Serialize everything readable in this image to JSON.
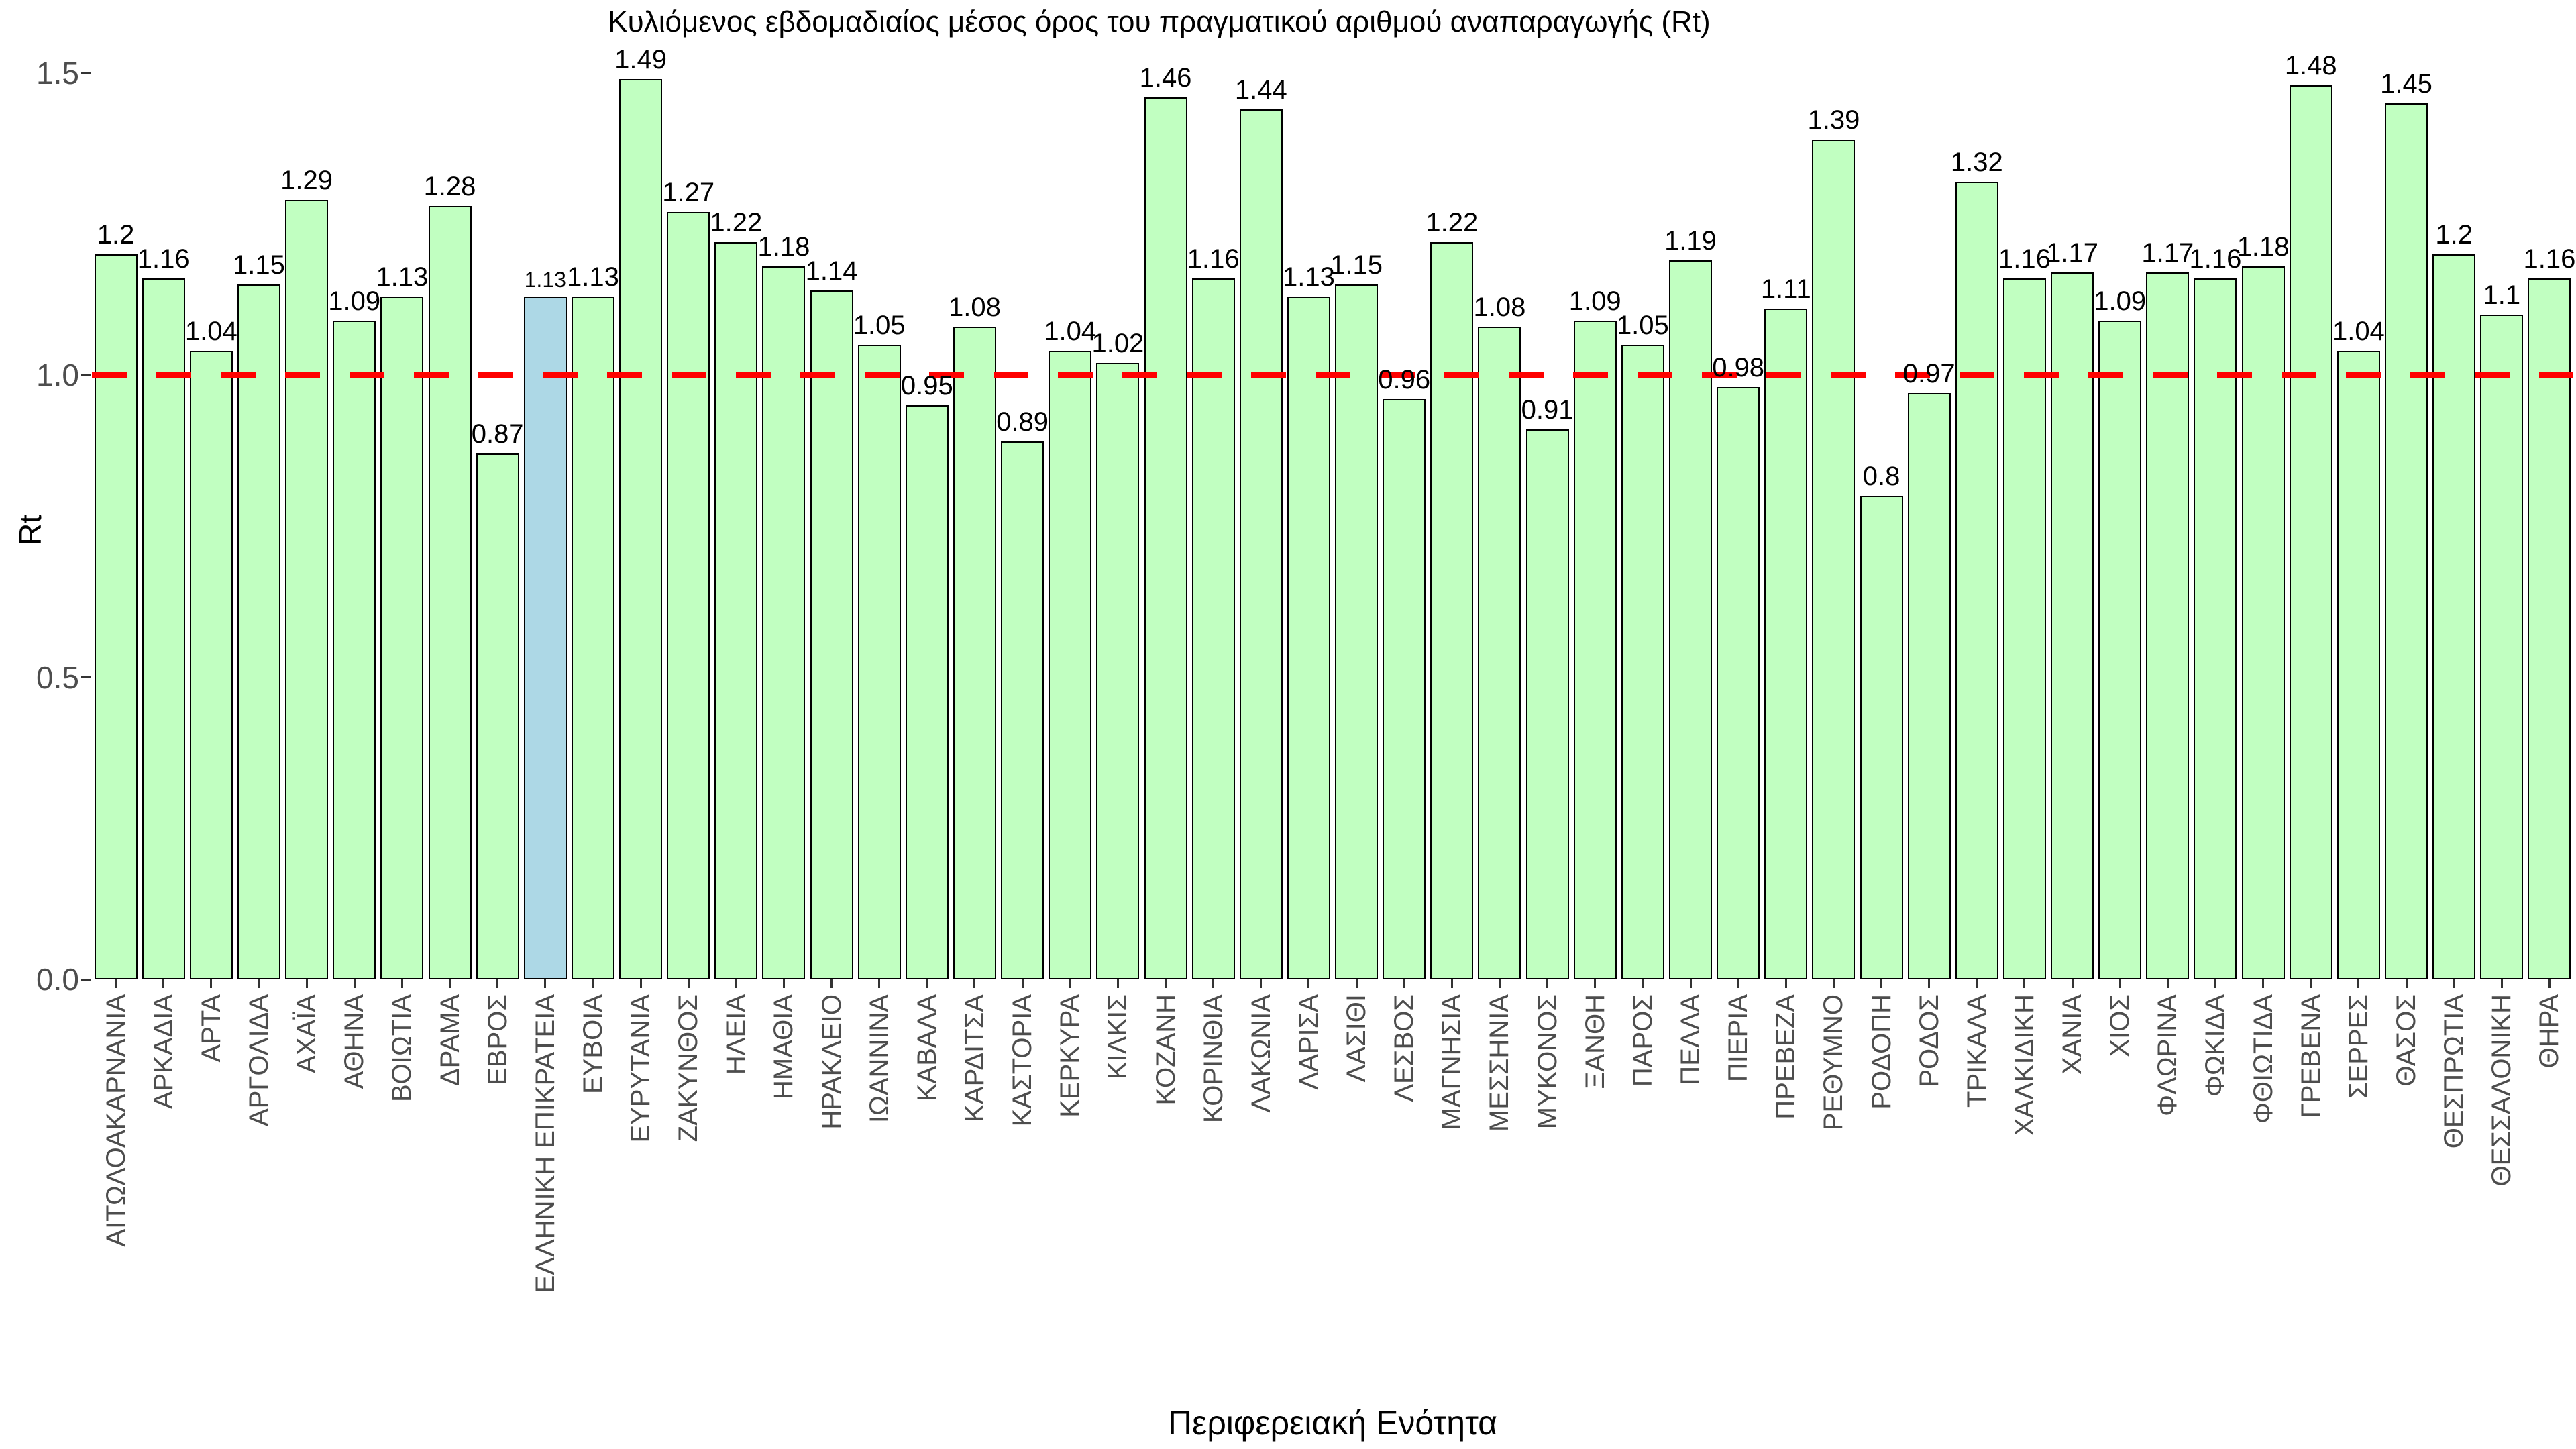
{
  "chart_data": {
    "type": "bar",
    "title": "Κυλιόμενος εβδομαδιαίος μέσος όρος του πραγματικού αριθμού αναπαραγωγής (Rt)",
    "xlabel": "Περιφερειακή Ενότητα",
    "ylabel": "Rt",
    "ylim": [
      0,
      1.5
    ],
    "ytick_labels": [
      "0.0",
      "0.5",
      "1.0",
      "1.5"
    ],
    "ytick_values": [
      0,
      0.5,
      1.0,
      1.5
    ],
    "grid": "off",
    "legend_position": "none",
    "reference_line_y": 1.0,
    "highlight_category": "ΕΛΛΗΝΙΚΗ ΕΠΙΚΡΑΤΕΙΑ",
    "categories": [
      "ΑΙΤΩΛΟΑΚΑΡΝΑΝΙΑ",
      "ΑΡΚΑΔΙΑ",
      "ΑΡΤΑ",
      "ΑΡΓΟΛΙΔΑ",
      "ΑΧΑΪΑ",
      "ΑΘΗΝΑ",
      "ΒΟΙΩΤΙΑ",
      "ΔΡΑΜΑ",
      "ΕΒΡΟΣ",
      "ΕΛΛΗΝΙΚΗ ΕΠΙΚΡΑΤΕΙΑ",
      "ΕΥΒΟΙΑ",
      "ΕΥΡΥΤΑΝΙΑ",
      "ΖΑΚΥΝΘΟΣ",
      "ΗΛΕΙΑ",
      "ΗΜΑΘΙΑ",
      "ΗΡΑΚΛΕΙΟ",
      "ΙΩΑΝΝΙΝΑ",
      "ΚΑΒΑΛΑ",
      "ΚΑΡΔΙΤΣΑ",
      "ΚΑΣΤΟΡΙΑ",
      "ΚΕΡΚΥΡΑ",
      "ΚΙΛΚΙΣ",
      "ΚΟΖΑΝΗ",
      "ΚΟΡΙΝΘΙΑ",
      "ΛΑΚΩΝΙΑ",
      "ΛΑΡΙΣΑ",
      "ΛΑΣΙΘΙ",
      "ΛΕΣΒΟΣ",
      "ΜΑΓΝΗΣΙΑ",
      "ΜΕΣΣΗΝΙΑ",
      "ΜΥΚΟΝΟΣ",
      "ΞΑΝΘΗ",
      "ΠΑΡΟΣ",
      "ΠΕΛΛΑ",
      "ΠΙΕΡΙΑ",
      "ΠΡΕΒΕΖΑ",
      "ΡΕΘΥΜΝΟ",
      "ΡΟΔΟΠΗ",
      "ΡΟΔΟΣ",
      "ΤΡΙΚΑΛΑ",
      "ΧΑΛΚΙΔΙΚΗ",
      "ΧΑΝΙΑ",
      "ΧΙΟΣ",
      "ΦΛΩΡΙΝΑ",
      "ΦΩΚΙΔΑ",
      "ΦΘΙΩΤΙΔΑ",
      "ΓΡΕΒΕΝΑ",
      "ΣΕΡΡΕΣ",
      "ΘΑΣΟΣ",
      "ΘΕΣΠΡΩΤΙΑ",
      "ΘΕΣΣΑΛΟΝΙΚΗ",
      "ΘΗΡΑ"
    ],
    "values": [
      1.2,
      1.16,
      1.04,
      1.15,
      1.29,
      1.09,
      1.13,
      1.28,
      0.87,
      1.13,
      1.13,
      1.49,
      1.27,
      1.22,
      1.18,
      1.14,
      1.05,
      0.95,
      1.08,
      0.89,
      1.04,
      1.02,
      1.46,
      1.16,
      1.44,
      1.13,
      1.15,
      0.96,
      1.22,
      1.08,
      0.91,
      1.09,
      1.05,
      1.19,
      0.98,
      1.11,
      1.39,
      0.8,
      0.97,
      1.32,
      1.16,
      1.17,
      1.09,
      1.17,
      1.16,
      1.18,
      1.48,
      1.04,
      1.45,
      1.2,
      1.1,
      1.16
    ]
  },
  "colors": {
    "bar_fill": "#c1ffc1",
    "bar_border": "#000000",
    "highlight_fill": "#add8e6",
    "reference_line": "#ff0000",
    "axis_text": "#4d4d4d",
    "tick_mark": "#333333",
    "text": "#000000"
  }
}
